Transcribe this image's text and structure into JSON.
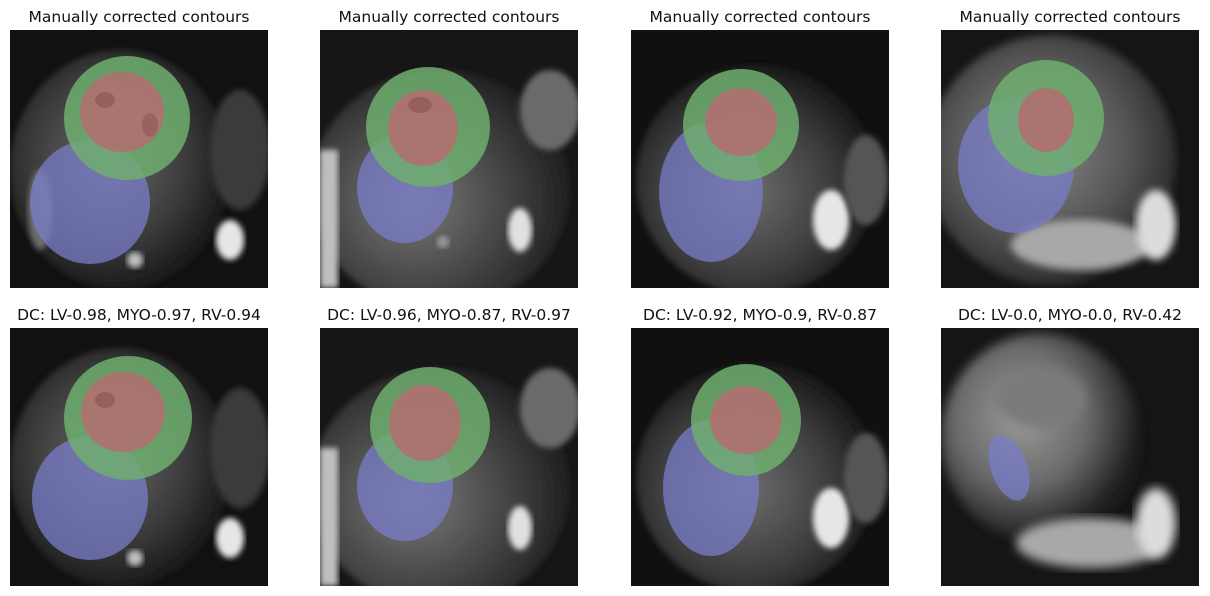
{
  "figure": {
    "panels": [
      {
        "title": "Manually corrected contours",
        "variant": "a",
        "lv": true,
        "myo": true,
        "rv": true
      },
      {
        "title": "Manually corrected contours",
        "variant": "b",
        "lv": true,
        "myo": true,
        "rv": true
      },
      {
        "title": "Manually corrected contours",
        "variant": "c",
        "lv": true,
        "myo": true,
        "rv": true
      },
      {
        "title": "Manually corrected contours",
        "variant": "d",
        "lv": true,
        "myo": true,
        "rv": true
      },
      {
        "title": "DC: LV-0.98, MYO-0.97, RV-0.94",
        "variant": "a",
        "lv": true,
        "myo": true,
        "rv": true
      },
      {
        "title": "DC: LV-0.96, MYO-0.87, RV-0.97",
        "variant": "b",
        "lv": true,
        "myo": true,
        "rv": true
      },
      {
        "title": "DC: LV-0.92, MYO-0.9, RV-0.87",
        "variant": "c",
        "lv": true,
        "myo": true,
        "rv": true
      },
      {
        "title": "DC: LV-0.0, MYO-0.0, RV-0.42",
        "variant": "e",
        "lv": false,
        "myo": false,
        "rv": true
      }
    ],
    "colors": {
      "lv": "#b07070",
      "myo": "#6fae6f",
      "rv": "#7a7ec8",
      "background": "#0d0d0d"
    }
  }
}
